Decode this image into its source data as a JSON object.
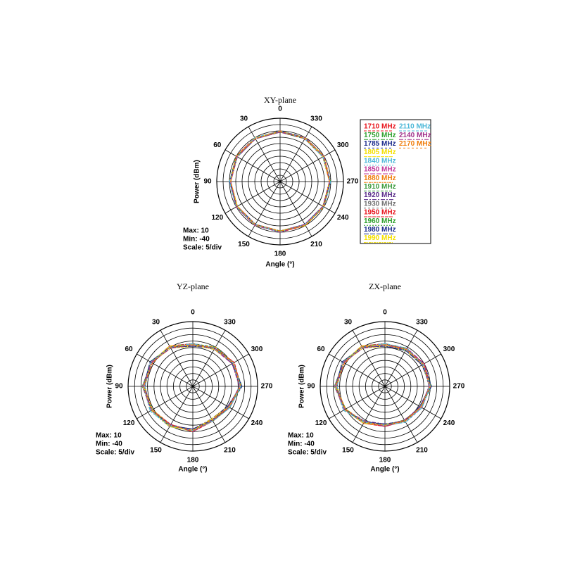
{
  "chart_data": [
    {
      "type": "polar",
      "title": "XY-plane",
      "ylabel": "Power (dBm)",
      "xlabel": "Angle (°)",
      "annotations": [
        "Max: 10",
        "Min: -40",
        "Scale: 5/div"
      ],
      "rlim": [
        -40,
        10
      ],
      "rticks": [
        -40,
        -35,
        -30,
        -25,
        -20,
        -15,
        -10,
        -5,
        0,
        5,
        10
      ],
      "theta": [
        0,
        30,
        60,
        90,
        120,
        150,
        180,
        210,
        240,
        270,
        300,
        330
      ],
      "legend": "right",
      "series": [
        {
          "name": "1710 MHz",
          "color": "#e8141c",
          "values": [
            -1,
            0,
            -1,
            -1,
            0,
            -1,
            -1,
            0,
            -1,
            -1,
            0,
            -1
          ]
        },
        {
          "name": "1750 MHz",
          "color": "#2ca02c",
          "values": [
            0,
            -1,
            -1,
            0,
            -1,
            0,
            -1,
            -1,
            0,
            -1,
            -1,
            0
          ]
        },
        {
          "name": "1785 MHz",
          "color": "#1a2a8c",
          "values": [
            -1,
            -1,
            0,
            -1,
            -1,
            -1,
            0,
            -1,
            -1,
            0,
            -1,
            -1
          ]
        },
        {
          "name": "1805 MHz",
          "color": "#f5e000",
          "values": [
            0,
            0,
            -1,
            -1,
            0,
            0,
            -1,
            0,
            -1,
            -1,
            0,
            0
          ]
        },
        {
          "name": "1840 MHz",
          "color": "#4db8d8",
          "values": [
            -1,
            0,
            0,
            -1,
            -1,
            0,
            0,
            -1,
            0,
            -1,
            -1,
            0
          ]
        },
        {
          "name": "1850 MHz",
          "color": "#c0399a",
          "values": [
            -1,
            -1,
            -1,
            0,
            0,
            -1,
            -1,
            -1,
            0,
            0,
            -1,
            -1
          ]
        },
        {
          "name": "1880 MHz",
          "color": "#f07d0a",
          "values": [
            0,
            -1,
            0,
            0,
            -1,
            -1,
            0,
            0,
            -1,
            0,
            0,
            -1
          ]
        },
        {
          "name": "1910 MHz",
          "color": "#3a9a3a",
          "values": [
            -1,
            0,
            -1,
            0,
            -1,
            0,
            -1,
            0,
            -1,
            0,
            -1,
            0
          ]
        },
        {
          "name": "1920 MHz",
          "color": "#5a2d8a",
          "values": [
            0,
            -1,
            -1,
            -1,
            0,
            -1,
            0,
            -1,
            -1,
            -1,
            0,
            -1
          ]
        },
        {
          "name": "1930 MHz",
          "color": "#707070",
          "values": [
            -1,
            -1,
            0,
            -1,
            0,
            0,
            -1,
            -1,
            0,
            -1,
            -1,
            0
          ]
        },
        {
          "name": "1950 MHz",
          "color": "#e8141c",
          "values": [
            0,
            0,
            0,
            -1,
            -1,
            -1,
            0,
            0,
            0,
            -1,
            -1,
            -1
          ]
        },
        {
          "name": "1960 MHz",
          "color": "#2ca02c",
          "values": [
            -1,
            -1,
            0,
            0,
            0,
            -1,
            -1,
            0,
            0,
            0,
            -1,
            -1
          ]
        },
        {
          "name": "1980 MHz",
          "color": "#1a2a8c",
          "values": [
            0,
            -1,
            -1,
            0,
            -1,
            -1,
            0,
            -1,
            -1,
            0,
            -1,
            0
          ]
        },
        {
          "name": "1990 MHz",
          "color": "#f5e000",
          "values": [
            -1,
            0,
            -1,
            -1,
            -1,
            0,
            -1,
            0,
            -1,
            -1,
            -1,
            0
          ]
        },
        {
          "name": "2110 MHz",
          "color": "#4db8d8",
          "values": [
            0,
            0,
            -1,
            0,
            0,
            -1,
            0,
            -1,
            0,
            0,
            -1,
            -1
          ]
        },
        {
          "name": "2140 MHz",
          "color": "#a0308a",
          "values": [
            -1,
            -1,
            -1,
            -1,
            0,
            0,
            0,
            -1,
            -1,
            -1,
            0,
            0
          ]
        },
        {
          "name": "2170 MHz",
          "color": "#f07d0a",
          "values": [
            0,
            -1,
            0,
            -1,
            -1,
            -1,
            -1,
            0,
            0,
            -1,
            0,
            -1
          ]
        }
      ]
    },
    {
      "type": "polar",
      "title": "YZ-plane",
      "ylabel": "Power (dBm)",
      "xlabel": "Angle (°)",
      "annotations": [
        "Max: 10",
        "Min: -40",
        "Scale: 5/div"
      ],
      "rlim": [
        -40,
        10
      ],
      "rticks": [
        -40,
        -35,
        -30,
        -25,
        -20,
        -15,
        -10,
        -5,
        0,
        5,
        10
      ],
      "theta": [
        0,
        30,
        60,
        90,
        120,
        150,
        180,
        210,
        240,
        270,
        300,
        330
      ],
      "series": [
        {
          "color": "#e8141c",
          "values": [
            -8,
            -5,
            -3,
            -2,
            -3,
            -5,
            -6,
            -10,
            -8,
            -3,
            -4,
            -6
          ]
        },
        {
          "color": "#2ca02c",
          "values": [
            -7,
            -4,
            -3,
            -2,
            -4,
            -5,
            -7,
            -9,
            -7,
            -3,
            -5,
            -6
          ]
        },
        {
          "color": "#1a2a8c",
          "values": [
            -8,
            -5,
            -2,
            -2,
            -3,
            -6,
            -6,
            -10,
            -8,
            -2,
            -4,
            -7
          ]
        },
        {
          "color": "#f5e000",
          "values": [
            -9,
            -6,
            -3,
            -3,
            -3,
            -5,
            -5,
            -11,
            -9,
            -3,
            -4,
            -5
          ]
        },
        {
          "color": "#4db8d8",
          "values": [
            -7,
            -5,
            -4,
            -2,
            -2,
            -4,
            -6,
            -9,
            -8,
            -4,
            -3,
            -6
          ]
        },
        {
          "color": "#c0399a",
          "values": [
            -8,
            -4,
            -3,
            -1,
            -3,
            -5,
            -7,
            -10,
            -7,
            -3,
            -5,
            -7
          ]
        },
        {
          "color": "#f07d0a",
          "values": [
            -8,
            -5,
            -3,
            -2,
            -4,
            -6,
            -6,
            -10,
            -8,
            -3,
            -4,
            -6
          ]
        },
        {
          "color": "#3a9a3a",
          "values": [
            -7,
            -5,
            -2,
            -2,
            -3,
            -5,
            -6,
            -9,
            -8,
            -2,
            -4,
            -5
          ]
        },
        {
          "color": "#5a2d8a",
          "values": [
            -9,
            -5,
            -3,
            -3,
            -3,
            -4,
            -7,
            -11,
            -9,
            -3,
            -5,
            -6
          ]
        },
        {
          "color": "#707070",
          "values": [
            -8,
            -6,
            -3,
            -2,
            -2,
            -5,
            -6,
            -10,
            -7,
            -4,
            -4,
            -7
          ]
        },
        {
          "color": "#e8141c",
          "values": [
            -7,
            -4,
            -4,
            -2,
            -3,
            -6,
            -5,
            -9,
            -8,
            -3,
            -3,
            -6
          ]
        },
        {
          "color": "#2ca02c",
          "values": [
            -8,
            -5,
            -3,
            -1,
            -4,
            -5,
            -6,
            -10,
            -8,
            -3,
            -4,
            -5
          ]
        },
        {
          "color": "#1a2a8c",
          "values": [
            -9,
            -5,
            -2,
            -2,
            -3,
            -5,
            -7,
            -10,
            -9,
            -2,
            -5,
            -6
          ]
        },
        {
          "color": "#f5e000",
          "values": [
            -8,
            -4,
            -3,
            -2,
            -3,
            -4,
            -6,
            -11,
            -8,
            -3,
            -4,
            -7
          ]
        },
        {
          "color": "#4db8d8",
          "values": [
            -7,
            -5,
            -3,
            -3,
            -2,
            -5,
            -6,
            -9,
            -7,
            -3,
            -4,
            -6
          ]
        },
        {
          "color": "#a0308a",
          "values": [
            -8,
            -6,
            -3,
            -2,
            -3,
            -6,
            -5,
            -10,
            -8,
            -4,
            -5,
            -6
          ]
        },
        {
          "color": "#f07d0a",
          "values": [
            -8,
            -5,
            -4,
            -2,
            -4,
            -5,
            -6,
            -10,
            -8,
            -3,
            -4,
            -5
          ]
        }
      ]
    },
    {
      "type": "polar",
      "title": "ZX-plane",
      "ylabel": "Power (dBm)",
      "xlabel": "Angle (°)",
      "annotations": [
        "Max: 10",
        "Min: -40",
        "Scale: 5/div"
      ],
      "rlim": [
        -40,
        10
      ],
      "rticks": [
        -40,
        -35,
        -30,
        -25,
        -20,
        -15,
        -10,
        -5,
        0,
        5,
        10
      ],
      "theta": [
        0,
        30,
        60,
        90,
        120,
        150,
        180,
        210,
        240,
        270,
        300,
        330
      ],
      "series": [
        {
          "color": "#e8141c",
          "values": [
            -8,
            -5,
            -3,
            -2,
            -4,
            -8,
            -10,
            -9,
            -8,
            -5,
            -6,
            -7
          ]
        },
        {
          "color": "#2ca02c",
          "values": [
            -7,
            -4,
            -3,
            -2,
            -5,
            -8,
            -9,
            -9,
            -7,
            -5,
            -6,
            -6
          ]
        },
        {
          "color": "#1a2a8c",
          "values": [
            -8,
            -5,
            -2,
            -2,
            -4,
            -7,
            -10,
            -10,
            -8,
            -4,
            -5,
            -7
          ]
        },
        {
          "color": "#f5e000",
          "values": [
            -9,
            -6,
            -3,
            -3,
            -4,
            -8,
            -11,
            -9,
            -9,
            -5,
            -7,
            -8
          ]
        },
        {
          "color": "#4db8d8",
          "values": [
            -7,
            -5,
            -4,
            -2,
            -3,
            -9,
            -10,
            -8,
            -8,
            -6,
            -6,
            -7
          ]
        },
        {
          "color": "#c0399a",
          "values": [
            -8,
            -4,
            -3,
            -1,
            -4,
            -8,
            -9,
            -9,
            -7,
            -5,
            -5,
            -6
          ]
        },
        {
          "color": "#f07d0a",
          "values": [
            -8,
            -5,
            -3,
            -2,
            -5,
            -7,
            -10,
            -10,
            -8,
            -5,
            -6,
            -7
          ]
        },
        {
          "color": "#3a9a3a",
          "values": [
            -7,
            -5,
            -2,
            -2,
            -4,
            -8,
            -10,
            -9,
            -8,
            -4,
            -6,
            -8
          ]
        },
        {
          "color": "#5a2d8a",
          "values": [
            -9,
            -5,
            -3,
            -3,
            -4,
            -9,
            -11,
            -9,
            -9,
            -5,
            -7,
            -7
          ]
        },
        {
          "color": "#707070",
          "values": [
            -8,
            -6,
            -3,
            -2,
            -3,
            -8,
            -10,
            -8,
            -7,
            -6,
            -6,
            -6
          ]
        },
        {
          "color": "#e8141c",
          "values": [
            -7,
            -4,
            -4,
            -2,
            -4,
            -7,
            -9,
            -9,
            -8,
            -5,
            -5,
            -7
          ]
        },
        {
          "color": "#2ca02c",
          "values": [
            -8,
            -5,
            -3,
            -1,
            -5,
            -8,
            -10,
            -10,
            -8,
            -5,
            -6,
            -7
          ]
        },
        {
          "color": "#1a2a8c",
          "values": [
            -9,
            -5,
            -2,
            -2,
            -4,
            -8,
            -11,
            -9,
            -9,
            -4,
            -7,
            -8
          ]
        },
        {
          "color": "#f5e000",
          "values": [
            -8,
            -4,
            -3,
            -2,
            -4,
            -7,
            -10,
            -9,
            -8,
            -5,
            -6,
            -7
          ]
        },
        {
          "color": "#4db8d8",
          "values": [
            -7,
            -5,
            -3,
            -3,
            -3,
            -8,
            -10,
            -8,
            -7,
            -5,
            -6,
            -6
          ]
        },
        {
          "color": "#a0308a",
          "values": [
            -8,
            -6,
            -3,
            -2,
            -4,
            -9,
            -9,
            -10,
            -8,
            -6,
            -5,
            -7
          ]
        },
        {
          "color": "#f07d0a",
          "values": [
            -8,
            -5,
            -4,
            -2,
            -5,
            -8,
            -10,
            -9,
            -8,
            -5,
            -6,
            -7
          ]
        }
      ]
    }
  ]
}
